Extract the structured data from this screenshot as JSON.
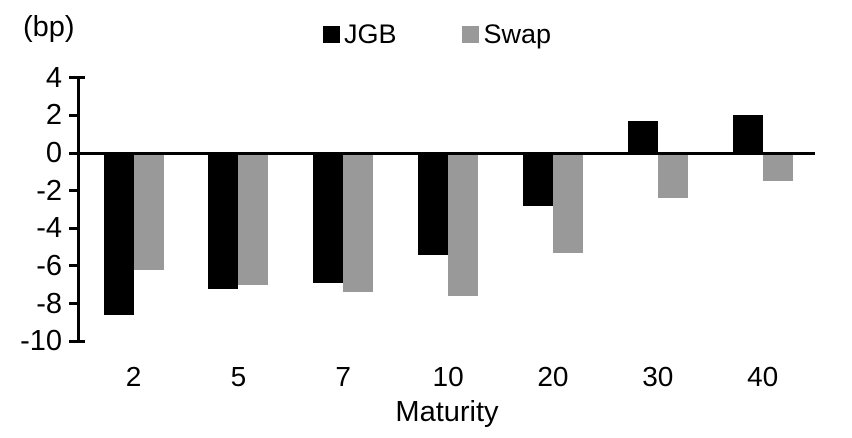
{
  "chart_data": {
    "type": "bar",
    "unit_label": "(bp)",
    "xlabel": "Maturity",
    "categories": [
      "2",
      "5",
      "7",
      "10",
      "20",
      "30",
      "40"
    ],
    "series": [
      {
        "name": "JGB",
        "color": "#000000",
        "values": [
          -8.6,
          -7.2,
          -6.9,
          -5.4,
          -2.8,
          1.7,
          2.0
        ]
      },
      {
        "name": "Swap",
        "color": "#999999",
        "values": [
          -6.2,
          -7.0,
          -7.4,
          -7.6,
          -5.3,
          -2.4,
          -1.5
        ]
      }
    ],
    "yticks": [
      4,
      2,
      0,
      -2,
      -4,
      -6,
      -8,
      -10
    ],
    "ylim": [
      -10,
      4
    ],
    "grid": false,
    "legend_position": "top-center",
    "background_color": "#ffffff"
  }
}
